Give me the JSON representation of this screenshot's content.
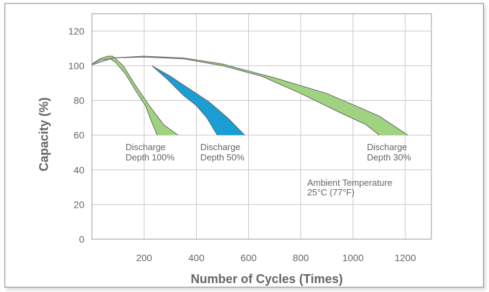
{
  "chart_data": {
    "type": "area",
    "title": "",
    "xlabel": "Number of Cycles (Times)",
    "ylabel": "Capacity (%)",
    "xlim": [
      0,
      1300
    ],
    "ylim": [
      0,
      130
    ],
    "x_ticks": [
      200,
      400,
      600,
      800,
      1000,
      1200
    ],
    "y_ticks": [
      0,
      20,
      40,
      60,
      80,
      100,
      120
    ],
    "grid": true,
    "series": [
      {
        "name": "Discharge Depth 100%",
        "label_lines": [
          "Discharge",
          "Depth 100%"
        ],
        "color": "#9fd37f",
        "upper": [
          [
            0,
            101
          ],
          [
            30,
            104
          ],
          [
            60,
            105.5
          ],
          [
            80,
            105.5
          ],
          [
            120,
            100
          ],
          [
            170,
            88
          ],
          [
            220,
            77
          ],
          [
            275,
            66
          ],
          [
            330,
            60
          ]
        ],
        "lower": [
          [
            0,
            101
          ],
          [
            40,
            103.5
          ],
          [
            70,
            104
          ],
          [
            90,
            102
          ],
          [
            130,
            95
          ],
          [
            170,
            85
          ],
          [
            205,
            77
          ],
          [
            225,
            69
          ],
          [
            250,
            60
          ]
        ]
      },
      {
        "name": "Discharge Depth 50%",
        "label_lines": [
          "Discharge",
          "Depth 50%"
        ],
        "color": "#1a9ed4",
        "upper": [
          [
            230,
            100
          ],
          [
            300,
            94
          ],
          [
            380,
            86
          ],
          [
            450,
            79
          ],
          [
            520,
            70
          ],
          [
            585,
            60
          ]
        ],
        "lower": [
          [
            230,
            100
          ],
          [
            290,
            92
          ],
          [
            350,
            83
          ],
          [
            400,
            77
          ],
          [
            440,
            70
          ],
          [
            480,
            60
          ]
        ]
      },
      {
        "name": "Discharge Depth 30%",
        "label_lines": [
          "Discharge",
          "Depth 30%"
        ],
        "color": "#9fd37f",
        "upper": [
          [
            0,
            100.5
          ],
          [
            80,
            104.5
          ],
          [
            200,
            105.5
          ],
          [
            350,
            104.5
          ],
          [
            500,
            101
          ],
          [
            700,
            93
          ],
          [
            900,
            84
          ],
          [
            1100,
            71
          ],
          [
            1210,
            60
          ]
        ],
        "lower": [
          [
            0,
            100.5
          ],
          [
            80,
            104.5
          ],
          [
            200,
            105
          ],
          [
            350,
            104
          ],
          [
            500,
            100
          ],
          [
            650,
            94
          ],
          [
            800,
            84
          ],
          [
            950,
            73
          ],
          [
            1050,
            66
          ],
          [
            1100,
            60
          ]
        ]
      }
    ],
    "annotation": {
      "lines": [
        "Ambient Temperature",
        "25°C (77°F)"
      ]
    }
  }
}
